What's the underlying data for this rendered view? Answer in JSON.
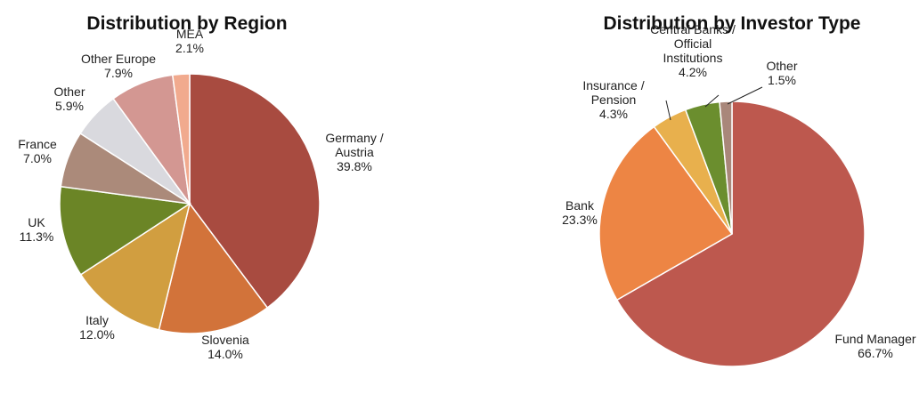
{
  "chart_data": [
    {
      "type": "pie",
      "title": "Distribution by Region",
      "slices": [
        {
          "label": [
            "Germany /",
            "Austria"
          ],
          "value": 39.8,
          "value_text": "39.8%",
          "color": "#A84B40"
        },
        {
          "label": [
            "Slovenia"
          ],
          "value": 14.0,
          "value_text": "14.0%",
          "color": "#D2733A"
        },
        {
          "label": [
            "Italy"
          ],
          "value": 12.0,
          "value_text": "12.0%",
          "color": "#D19E40"
        },
        {
          "label": [
            "UK"
          ],
          "value": 11.3,
          "value_text": "11.3%",
          "color": "#6B8526"
        },
        {
          "label": [
            "France"
          ],
          "value": 7.0,
          "value_text": "7.0%",
          "color": "#AB8A7A"
        },
        {
          "label": [
            "Other"
          ],
          "value": 5.9,
          "value_text": "5.9%",
          "color": "#D9D9DE"
        },
        {
          "label": [
            "Other Europe"
          ],
          "value": 7.9,
          "value_text": "7.9%",
          "color": "#D39792"
        },
        {
          "label": [
            "MEA"
          ],
          "value": 2.1,
          "value_text": "2.1%",
          "color": "#F1AA8E"
        }
      ]
    },
    {
      "type": "pie",
      "title": "Distribution by Investor Type",
      "slices": [
        {
          "label": [
            "Fund Manager"
          ],
          "value": 66.7,
          "value_text": "66.7%",
          "color": "#BD584E"
        },
        {
          "label": [
            "Bank"
          ],
          "value": 23.3,
          "value_text": "23.3%",
          "color": "#ED8544"
        },
        {
          "label": [
            "Insurance /",
            "Pension"
          ],
          "value": 4.3,
          "value_text": "4.3%",
          "color": "#E8B04D"
        },
        {
          "label": [
            "Central Banks /",
            "Official",
            "Institutions"
          ],
          "value": 4.2,
          "value_text": "4.2%",
          "color": "#6B8E2E"
        },
        {
          "label": [
            "Other"
          ],
          "value": 1.5,
          "value_text": "1.5%",
          "color": "#A9877A"
        }
      ]
    }
  ]
}
